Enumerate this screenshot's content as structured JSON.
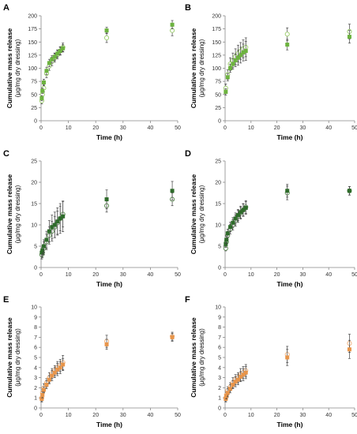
{
  "figure": {
    "width": 452,
    "height": 550
  },
  "chart_data": [
    {
      "type": "scatter",
      "panel": "A",
      "xlabel": "Time (h)",
      "ylabel_main": "Cumulative mass release",
      "ylabel_sub": "(μg/mg dry dressing)",
      "xlim": [
        0,
        50
      ],
      "ylim": [
        0,
        200
      ],
      "xticks": [
        0,
        10,
        20,
        30,
        40,
        50
      ],
      "yticks": [
        0,
        25,
        50,
        75,
        100,
        125,
        150,
        175,
        200
      ],
      "series": [
        {
          "style": "filled",
          "color": "#6db33f",
          "x": [
            0.25,
            0.5,
            1,
            2,
            3,
            4,
            5,
            6,
            7,
            8,
            24,
            48
          ],
          "y": [
            43,
            57,
            73,
            95,
            110,
            117,
            122,
            128,
            133,
            138,
            172,
            183
          ],
          "err": [
            5,
            5,
            6,
            7,
            7,
            7,
            7,
            7,
            7,
            7,
            6,
            8
          ]
        },
        {
          "style": "open",
          "color": "#9acd6a",
          "x": [
            0.25,
            0.5,
            1,
            2,
            3,
            4,
            5,
            6,
            7,
            8,
            24,
            48
          ],
          "y": [
            38,
            50,
            62,
            90,
            104,
            113,
            120,
            126,
            133,
            140,
            158,
            172
          ],
          "err": [
            6,
            6,
            7,
            8,
            8,
            8,
            8,
            8,
            8,
            8,
            9,
            10
          ]
        }
      ]
    },
    {
      "type": "scatter",
      "panel": "B",
      "xlabel": "Time (h)",
      "ylabel_main": "Cumulative mass release",
      "ylabel_sub": "(μg/mg dry dressing)",
      "xlim": [
        0,
        50
      ],
      "ylim": [
        0,
        200
      ],
      "xticks": [
        0,
        10,
        20,
        30,
        40,
        50
      ],
      "yticks": [
        0,
        25,
        50,
        75,
        100,
        125,
        150,
        175,
        200
      ],
      "series": [
        {
          "style": "filled",
          "color": "#6db33f",
          "x": [
            0.25,
            1,
            2,
            3,
            4,
            5,
            6,
            7,
            8,
            24,
            48
          ],
          "y": [
            55,
            83,
            100,
            108,
            115,
            120,
            125,
            130,
            133,
            145,
            160
          ],
          "err": [
            6,
            7,
            8,
            10,
            12,
            14,
            15,
            16,
            18,
            10,
            12
          ]
        },
        {
          "style": "open",
          "color": "#9acd6a",
          "x": [
            0.25,
            1,
            2,
            3,
            4,
            5,
            6,
            7,
            8,
            24,
            48
          ],
          "y": [
            62,
            88,
            108,
            115,
            122,
            128,
            133,
            137,
            140,
            165,
            170
          ],
          "err": [
            8,
            9,
            12,
            14,
            15,
            16,
            16,
            17,
            18,
            12,
            14
          ]
        }
      ]
    },
    {
      "type": "scatter",
      "panel": "C",
      "xlabel": "Time (h)",
      "ylabel_main": "Cumulative mass release",
      "ylabel_sub": "(μg/mg dry dressing)",
      "xlim": [
        0,
        50
      ],
      "ylim": [
        0,
        25
      ],
      "xticks": [
        0,
        10,
        20,
        30,
        40,
        50
      ],
      "yticks": [
        0,
        5,
        10,
        15,
        20,
        25
      ],
      "series": [
        {
          "style": "filled",
          "color": "#2e6b2a",
          "x": [
            0.25,
            0.5,
            1,
            2,
            3,
            4,
            5,
            6,
            7,
            8,
            24,
            48
          ],
          "y": [
            3.5,
            4,
            5,
            6.5,
            8.5,
            9.5,
            10,
            10.8,
            11.5,
            12,
            16,
            18
          ],
          "err": [
            0.8,
            1,
            1.5,
            2,
            2.5,
            2.8,
            3,
            3.2,
            3.5,
            3.6,
            2.2,
            2.2
          ]
        },
        {
          "style": "open",
          "color": "#5a8a50",
          "x": [
            0.25,
            0.5,
            1,
            2,
            3,
            4,
            5,
            6,
            7,
            8,
            24,
            48
          ],
          "y": [
            3,
            3.5,
            4.5,
            6,
            7.5,
            8.5,
            9.5,
            10.5,
            11.5,
            12.5,
            14.5,
            16
          ],
          "err": [
            1,
            1.2,
            1.5,
            1.8,
            2,
            2.3,
            2.5,
            2.7,
            2.9,
            3,
            1.5,
            1.5
          ]
        }
      ]
    },
    {
      "type": "scatter",
      "panel": "D",
      "xlabel": "Time (h)",
      "ylabel_main": "Cumulative mass release",
      "ylabel_sub": "(μg/mg dry dressing)",
      "xlim": [
        0,
        50
      ],
      "ylim": [
        0,
        25
      ],
      "xticks": [
        0,
        10,
        20,
        30,
        40,
        50
      ],
      "yticks": [
        0,
        5,
        10,
        15,
        20,
        25
      ],
      "series": [
        {
          "style": "filled",
          "color": "#2e6b2a",
          "x": [
            0.25,
            0.5,
            1,
            2,
            3,
            4,
            5,
            6,
            7,
            8,
            24,
            48
          ],
          "y": [
            5.5,
            6.5,
            8,
            9.5,
            10.5,
            11.5,
            12.3,
            13,
            13.5,
            14,
            18,
            18
          ],
          "err": [
            0.8,
            0.9,
            1,
            1.1,
            1.2,
            1.3,
            1.3,
            1.4,
            1.4,
            1.5,
            1.5,
            1
          ]
        },
        {
          "style": "open",
          "color": "#5a8a50",
          "x": [
            0.25,
            0.5,
            1,
            2,
            3,
            4,
            5,
            6,
            7,
            8,
            24,
            48
          ],
          "y": [
            4.5,
            6,
            7.5,
            9,
            10,
            11,
            12,
            12.8,
            13.5,
            14.2,
            17.5,
            18
          ],
          "err": [
            0.6,
            0.8,
            1,
            1.1,
            1.2,
            1.3,
            1.4,
            1.4,
            1.5,
            1.5,
            1.6,
            1
          ]
        }
      ]
    },
    {
      "type": "scatter",
      "panel": "E",
      "xlabel": "Time (h)",
      "ylabel_main": "Cumulative mass release",
      "ylabel_sub": "(μg/mg dry dressing)",
      "xlim": [
        0,
        50
      ],
      "ylim": [
        0,
        10
      ],
      "xticks": [
        0,
        10,
        20,
        30,
        40,
        50
      ],
      "yticks": [
        0,
        1,
        2,
        3,
        4,
        5,
        6,
        7,
        8,
        9,
        10
      ],
      "series": [
        {
          "style": "filled",
          "color": "#e8954a",
          "x": [
            0.25,
            0.5,
            1,
            2,
            3,
            4,
            5,
            6,
            7,
            8,
            24,
            48
          ],
          "y": [
            0.9,
            1.3,
            1.8,
            2.3,
            2.8,
            3.2,
            3.5,
            3.8,
            4,
            4.3,
            6.3,
            7
          ],
          "err": [
            0.3,
            0.3,
            0.3,
            0.4,
            0.4,
            0.5,
            0.5,
            0.6,
            0.6,
            0.6,
            0.5,
            0.4
          ]
        },
        {
          "style": "open",
          "color": "#f0b07a",
          "x": [
            0.25,
            0.5,
            1,
            2,
            3,
            4,
            5,
            6,
            7,
            8,
            24,
            48
          ],
          "y": [
            1,
            1.5,
            2,
            2.5,
            3,
            3.4,
            3.7,
            4,
            4.2,
            4.5,
            6.6,
            7.1
          ],
          "err": [
            0.3,
            0.3,
            0.4,
            0.4,
            0.5,
            0.5,
            0.5,
            0.6,
            0.6,
            0.7,
            0.6,
            0.4
          ]
        }
      ]
    },
    {
      "type": "scatter",
      "panel": "F",
      "xlabel": "Time (h)",
      "ylabel_main": "Cumulative mass release",
      "ylabel_sub": "(μg/mg dry dressing)",
      "xlim": [
        0,
        50
      ],
      "ylim": [
        0,
        10
      ],
      "xticks": [
        0,
        10,
        20,
        30,
        40,
        50
      ],
      "yticks": [
        0,
        1,
        2,
        3,
        4,
        5,
        6,
        7,
        8,
        9,
        10
      ],
      "series": [
        {
          "style": "filled",
          "color": "#e8954a",
          "x": [
            0.25,
            0.5,
            1,
            2,
            3,
            4,
            5,
            6,
            7,
            8,
            24,
            48
          ],
          "y": [
            0.9,
            1.2,
            1.5,
            1.9,
            2.3,
            2.6,
            2.8,
            3.1,
            3.3,
            3.5,
            5,
            5.8
          ],
          "err": [
            0.3,
            0.3,
            0.4,
            0.4,
            0.4,
            0.5,
            0.5,
            0.5,
            0.6,
            0.6,
            0.8,
            0.9
          ]
        },
        {
          "style": "open",
          "color": "#f0b07a",
          "x": [
            0.25,
            0.5,
            1,
            2,
            3,
            4,
            5,
            6,
            7,
            8,
            24,
            48
          ],
          "y": [
            1,
            1.3,
            1.7,
            2.1,
            2.5,
            2.8,
            3,
            3.3,
            3.5,
            3.7,
            5.3,
            6.4
          ],
          "err": [
            0.3,
            0.3,
            0.4,
            0.4,
            0.5,
            0.5,
            0.5,
            0.6,
            0.6,
            0.6,
            0.8,
            0.9
          ]
        }
      ]
    }
  ]
}
